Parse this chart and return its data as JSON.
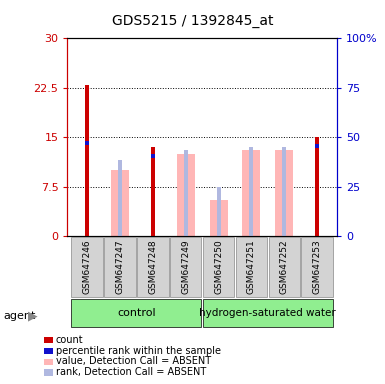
{
  "title": "GDS5215 / 1392845_at",
  "samples": [
    "GSM647246",
    "GSM647247",
    "GSM647248",
    "GSM647249",
    "GSM647250",
    "GSM647251",
    "GSM647252",
    "GSM647253"
  ],
  "red_bars": [
    23.0,
    0,
    13.5,
    0,
    0,
    0,
    0,
    15.0
  ],
  "blue_bars": [
    14.5,
    0,
    12.5,
    0,
    0,
    0,
    0,
    14.0
  ],
  "pink_bars": [
    0,
    10.0,
    0,
    12.5,
    5.5,
    13.0,
    13.0,
    0
  ],
  "lavender_bars": [
    0,
    11.5,
    0,
    13.0,
    7.5,
    13.5,
    13.5,
    0
  ],
  "ylim_left": [
    0,
    30
  ],
  "ylim_right": [
    0,
    100
  ],
  "yticks_left": [
    0,
    7.5,
    15,
    22.5,
    30
  ],
  "yticks_right": [
    0,
    25,
    50,
    75,
    100
  ],
  "ytick_labels_left": [
    "0",
    "7.5",
    "15",
    "22.5",
    "30"
  ],
  "ytick_labels_right": [
    "0",
    "25",
    "50",
    "75",
    "100%"
  ],
  "background_color": "#ffffff",
  "left_axis_color": "#cc0000",
  "right_axis_color": "#0000cc",
  "red_color": "#cc0000",
  "blue_color": "#1111cc",
  "pink_color": "#ffb6b6",
  "lavender_color": "#b0b8e0",
  "legend_items": [
    {
      "label": "count",
      "color": "#cc0000"
    },
    {
      "label": "percentile rank within the sample",
      "color": "#1111cc"
    },
    {
      "label": "value, Detection Call = ABSENT",
      "color": "#ffb6b6"
    },
    {
      "label": "rank, Detection Call = ABSENT",
      "color": "#b0b8e0"
    }
  ]
}
